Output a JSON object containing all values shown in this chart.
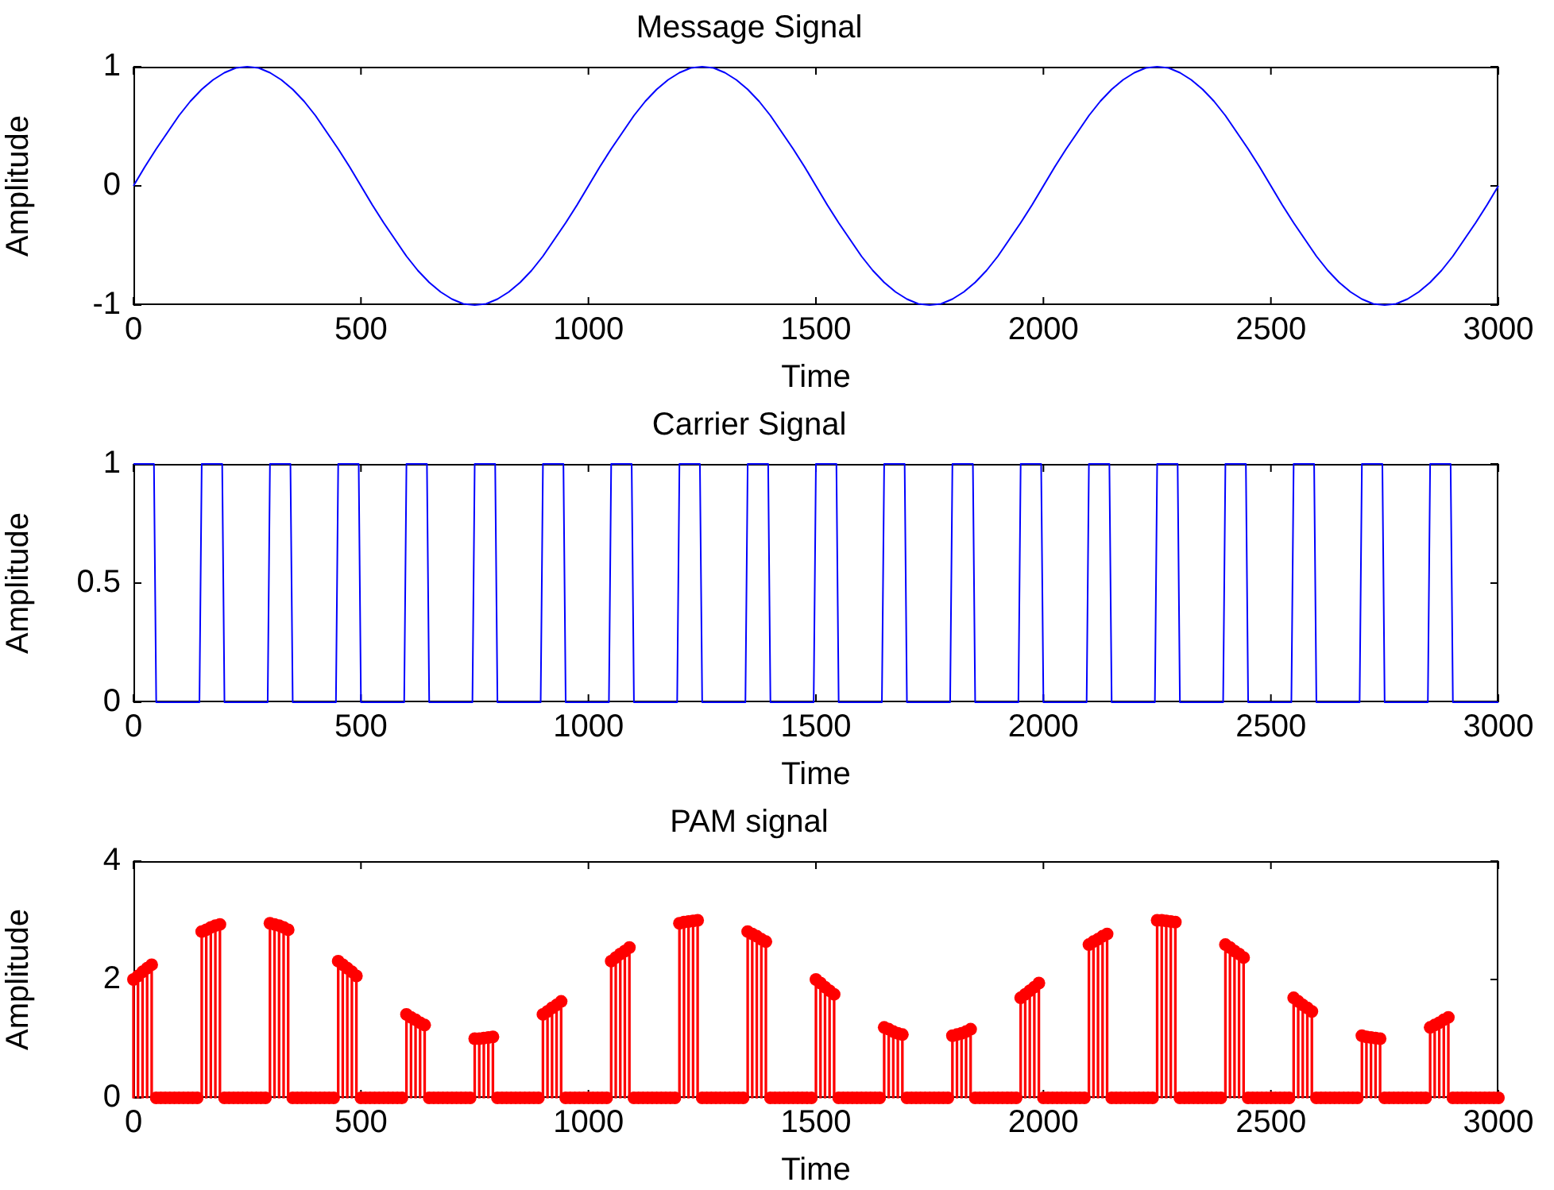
{
  "chart_data": [
    {
      "type": "line",
      "title": "Message Signal",
      "xlabel": "Time",
      "ylabel": "Amplitude",
      "color": "#0000ff",
      "marker": "none",
      "grid": false,
      "legend": false,
      "xlim": [
        0,
        3000
      ],
      "xticks": [
        0,
        500,
        1000,
        1500,
        2000,
        2500,
        3000
      ],
      "ylim": [
        -1,
        1
      ],
      "yticks": [
        -1,
        0,
        1
      ],
      "x": [
        0,
        25,
        50,
        75,
        100,
        125,
        150,
        175,
        200,
        225,
        250,
        275,
        300,
        325,
        350,
        375,
        400,
        425,
        450,
        475,
        500,
        525,
        550,
        575,
        600,
        625,
        650,
        675,
        700,
        725,
        750,
        775,
        800,
        825,
        850,
        875,
        900,
        925,
        950,
        975,
        1000,
        1025,
        1050,
        1075,
        1100,
        1125,
        1150,
        1175,
        1200,
        1225,
        1250,
        1275,
        1300,
        1325,
        1350,
        1375,
        1400,
        1425,
        1450,
        1475,
        1500,
        1525,
        1550,
        1575,
        1600,
        1625,
        1650,
        1675,
        1700,
        1725,
        1750,
        1775,
        1800,
        1825,
        1850,
        1875,
        1900,
        1925,
        1950,
        1975,
        2000,
        2025,
        2050,
        2075,
        2100,
        2125,
        2150,
        2175,
        2200,
        2225,
        2250,
        2275,
        2300,
        2325,
        2350,
        2375,
        2400,
        2425,
        2450,
        2475,
        2500,
        2525,
        2550,
        2575,
        2600,
        2625,
        2650,
        2675,
        2700,
        2725,
        2750,
        2775,
        2800,
        2825,
        2850,
        2875,
        2900,
        2925,
        2950,
        2975,
        3000
      ],
      "values": [
        0,
        0.16,
        0.31,
        0.45,
        0.59,
        0.71,
        0.81,
        0.89,
        0.95,
        0.99,
        1,
        0.99,
        0.95,
        0.89,
        0.81,
        0.71,
        0.59,
        0.45,
        0.31,
        0.16,
        0,
        -0.16,
        -0.31,
        -0.45,
        -0.59,
        -0.71,
        -0.81,
        -0.89,
        -0.95,
        -0.99,
        -1,
        -0.99,
        -0.95,
        -0.89,
        -0.81,
        -0.71,
        -0.59,
        -0.45,
        -0.31,
        -0.16,
        0,
        0.16,
        0.31,
        0.45,
        0.59,
        0.71,
        0.81,
        0.89,
        0.95,
        0.99,
        1,
        0.99,
        0.95,
        0.89,
        0.81,
        0.71,
        0.59,
        0.45,
        0.31,
        0.16,
        0,
        -0.16,
        -0.31,
        -0.45,
        -0.59,
        -0.71,
        -0.81,
        -0.89,
        -0.95,
        -0.99,
        -1,
        -0.99,
        -0.95,
        -0.89,
        -0.81,
        -0.71,
        -0.59,
        -0.45,
        -0.31,
        -0.16,
        0,
        0.16,
        0.31,
        0.45,
        0.59,
        0.71,
        0.81,
        0.89,
        0.95,
        0.99,
        1,
        0.99,
        0.95,
        0.89,
        0.81,
        0.71,
        0.59,
        0.45,
        0.31,
        0.16,
        0,
        -0.16,
        -0.31,
        -0.45,
        -0.59,
        -0.71,
        -0.81,
        -0.89,
        -0.95,
        -0.99,
        -1,
        -0.99,
        -0.95,
        -0.89,
        -0.81,
        -0.71,
        -0.59,
        -0.45,
        -0.31,
        -0.16,
        0
      ]
    },
    {
      "type": "line",
      "title": "Carrier Signal",
      "xlabel": "Time",
      "ylabel": "Amplitude",
      "color": "#0000ff",
      "marker": "none",
      "grid": false,
      "legend": false,
      "xlim": [
        0,
        3000
      ],
      "xticks": [
        0,
        500,
        1000,
        1500,
        2000,
        2500,
        3000
      ],
      "ylim": [
        0,
        1
      ],
      "yticks": [
        0,
        0.5,
        1
      ],
      "x": [
        0,
        45,
        50,
        145,
        150,
        195,
        200,
        295,
        300,
        345,
        350,
        445,
        450,
        495,
        500,
        595,
        600,
        645,
        650,
        745,
        750,
        795,
        800,
        895,
        900,
        945,
        950,
        1045,
        1050,
        1095,
        1100,
        1195,
        1200,
        1245,
        1250,
        1345,
        1350,
        1395,
        1400,
        1495,
        1500,
        1545,
        1550,
        1645,
        1650,
        1695,
        1700,
        1795,
        1800,
        1845,
        1850,
        1945,
        1950,
        1995,
        2000,
        2095,
        2100,
        2145,
        2150,
        2245,
        2250,
        2295,
        2300,
        2395,
        2400,
        2445,
        2450,
        2545,
        2550,
        2595,
        2600,
        2695,
        2700,
        2745,
        2750,
        2845,
        2850,
        2895,
        2900,
        3000
      ],
      "values": [
        1,
        1,
        0,
        0,
        1,
        1,
        0,
        0,
        1,
        1,
        0,
        0,
        1,
        1,
        0,
        0,
        1,
        1,
        0,
        0,
        1,
        1,
        0,
        0,
        1,
        1,
        0,
        0,
        1,
        1,
        0,
        0,
        1,
        1,
        0,
        0,
        1,
        1,
        0,
        0,
        1,
        1,
        0,
        0,
        1,
        1,
        0,
        0,
        1,
        1,
        0,
        0,
        1,
        1,
        0,
        0,
        1,
        1,
        0,
        0,
        1,
        1,
        0,
        0,
        1,
        1,
        0,
        0,
        1,
        1,
        0,
        0,
        1,
        1,
        0,
        0,
        1,
        1,
        0,
        0
      ]
    },
    {
      "type": "lollipop",
      "title": "PAM signal",
      "xlabel": "Time",
      "ylabel": "Amplitude",
      "color": "#ff0000",
      "marker": "circle",
      "grid": false,
      "legend": false,
      "xlim": [
        0,
        3000
      ],
      "xticks": [
        0,
        500,
        1000,
        1500,
        2000,
        2500,
        3000
      ],
      "ylim": [
        0,
        4
      ],
      "yticks": [
        0,
        2,
        4
      ],
      "x": [
        0,
        10,
        20,
        30,
        40,
        50,
        60,
        70,
        80,
        90,
        100,
        110,
        120,
        130,
        140,
        150,
        160,
        170,
        180,
        190,
        200,
        210,
        220,
        230,
        240,
        250,
        260,
        270,
        280,
        290,
        300,
        310,
        320,
        330,
        340,
        350,
        360,
        370,
        380,
        390,
        400,
        410,
        420,
        430,
        440,
        450,
        460,
        470,
        480,
        490,
        500,
        510,
        520,
        530,
        540,
        550,
        560,
        570,
        580,
        590,
        600,
        610,
        620,
        630,
        640,
        650,
        660,
        670,
        680,
        690,
        700,
        710,
        720,
        730,
        740,
        750,
        760,
        770,
        780,
        790,
        800,
        810,
        820,
        830,
        840,
        850,
        860,
        870,
        880,
        890,
        900,
        910,
        920,
        930,
        940,
        950,
        960,
        970,
        980,
        990,
        1000,
        1010,
        1020,
        1030,
        1040,
        1050,
        1060,
        1070,
        1080,
        1090,
        1100,
        1110,
        1120,
        1130,
        1140,
        1150,
        1160,
        1170,
        1180,
        1190,
        1200,
        1210,
        1220,
        1230,
        1240,
        1250,
        1260,
        1270,
        1280,
        1290,
        1300,
        1310,
        1320,
        1330,
        1340,
        1350,
        1360,
        1370,
        1380,
        1390,
        1400,
        1410,
        1420,
        1430,
        1440,
        1450,
        1460,
        1470,
        1480,
        1490,
        1500,
        1510,
        1520,
        1530,
        1540,
        1550,
        1560,
        1570,
        1580,
        1590,
        1600,
        1610,
        1620,
        1630,
        1640,
        1650,
        1660,
        1670,
        1680,
        1690,
        1700,
        1710,
        1720,
        1730,
        1740,
        1750,
        1760,
        1770,
        1780,
        1790,
        1800,
        1810,
        1820,
        1830,
        1840,
        1850,
        1860,
        1870,
        1880,
        1890,
        1900,
        1910,
        1920,
        1930,
        1940,
        1950,
        1960,
        1970,
        1980,
        1990,
        2000,
        2010,
        2020,
        2030,
        2040,
        2050,
        2060,
        2070,
        2080,
        2090,
        2100,
        2110,
        2120,
        2130,
        2140,
        2150,
        2160,
        2170,
        2180,
        2190,
        2200,
        2210,
        2220,
        2230,
        2240,
        2250,
        2260,
        2270,
        2280,
        2290,
        2300,
        2310,
        2320,
        2330,
        2340,
        2350,
        2360,
        2370,
        2380,
        2390,
        2400,
        2410,
        2420,
        2430,
        2440,
        2450,
        2460,
        2470,
        2480,
        2490,
        2500,
        2510,
        2520,
        2530,
        2540,
        2550,
        2560,
        2570,
        2580,
        2590,
        2600,
        2610,
        2620,
        2630,
        2640,
        2650,
        2660,
        2670,
        2680,
        2690,
        2700,
        2710,
        2720,
        2730,
        2740,
        2750,
        2760,
        2770,
        2780,
        2790,
        2800,
        2810,
        2820,
        2830,
        2840,
        2850,
        2860,
        2870,
        2880,
        2890,
        2900,
        2910,
        2920,
        2930,
        2940,
        2950,
        2960,
        2970,
        2980,
        2990,
        3000
      ],
      "values": [
        2,
        2.06,
        2.13,
        2.19,
        2.25,
        0,
        0,
        0,
        0,
        0,
        0,
        0,
        0,
        0,
        0,
        2.81,
        2.84,
        2.88,
        2.91,
        2.93,
        0,
        0,
        0,
        0,
        0,
        0,
        0,
        0,
        0,
        0,
        2.95,
        2.93,
        2.91,
        2.88,
        2.84,
        0,
        0,
        0,
        0,
        0,
        0,
        0,
        0,
        0,
        0,
        2.31,
        2.25,
        2.19,
        2.13,
        2.06,
        0,
        0,
        0,
        0,
        0,
        0,
        0,
        0,
        0,
        0,
        1.41,
        1.36,
        1.32,
        1.27,
        1.23,
        0,
        0,
        0,
        0,
        0,
        0,
        0,
        0,
        0,
        0,
        1,
        1,
        1.01,
        1.02,
        1.03,
        0,
        0,
        0,
        0,
        0,
        0,
        0,
        0,
        0,
        0,
        1.41,
        1.46,
        1.52,
        1.57,
        1.63,
        0,
        0,
        0,
        0,
        0,
        0,
        0,
        0,
        0,
        0,
        2.31,
        2.37,
        2.43,
        2.48,
        2.54,
        0,
        0,
        0,
        0,
        0,
        0,
        0,
        0,
        0,
        0,
        2.95,
        2.97,
        2.98,
        2.99,
        3,
        0,
        0,
        0,
        0,
        0,
        0,
        0,
        0,
        0,
        0,
        2.81,
        2.77,
        2.73,
        2.68,
        2.64,
        0,
        0,
        0,
        0,
        0,
        0,
        0,
        0,
        0,
        0,
        2,
        1.94,
        1.87,
        1.81,
        1.75,
        0,
        0,
        0,
        0,
        0,
        0,
        0,
        0,
        0,
        0,
        1.19,
        1.16,
        1.12,
        1.09,
        1.07,
        0,
        0,
        0,
        0,
        0,
        0,
        0,
        0,
        0,
        0,
        1.05,
        1.07,
        1.09,
        1.12,
        1.16,
        0,
        0,
        0,
        0,
        0,
        0,
        0,
        0,
        0,
        0,
        1.69,
        1.75,
        1.81,
        1.87,
        1.94,
        0,
        0,
        0,
        0,
        0,
        0,
        0,
        0,
        0,
        0,
        2.59,
        2.64,
        2.68,
        2.73,
        2.77,
        0,
        0,
        0,
        0,
        0,
        0,
        0,
        0,
        0,
        0,
        3,
        3,
        2.99,
        2.98,
        2.97,
        0,
        0,
        0,
        0,
        0,
        0,
        0,
        0,
        0,
        0,
        2.59,
        2.54,
        2.48,
        2.43,
        2.37,
        0,
        0,
        0,
        0,
        0,
        0,
        0,
        0,
        0,
        0,
        1.69,
        1.63,
        1.57,
        1.52,
        1.46,
        0,
        0,
        0,
        0,
        0,
        0,
        0,
        0,
        0,
        0,
        1.05,
        1.03,
        1.02,
        1.01,
        1,
        0,
        0,
        0,
        0,
        0,
        0,
        0,
        0,
        0,
        0,
        1.19,
        1.23,
        1.27,
        1.32,
        1.36,
        0,
        0,
        0,
        0,
        0,
        0,
        0,
        0,
        0,
        0,
        0
      ]
    }
  ]
}
